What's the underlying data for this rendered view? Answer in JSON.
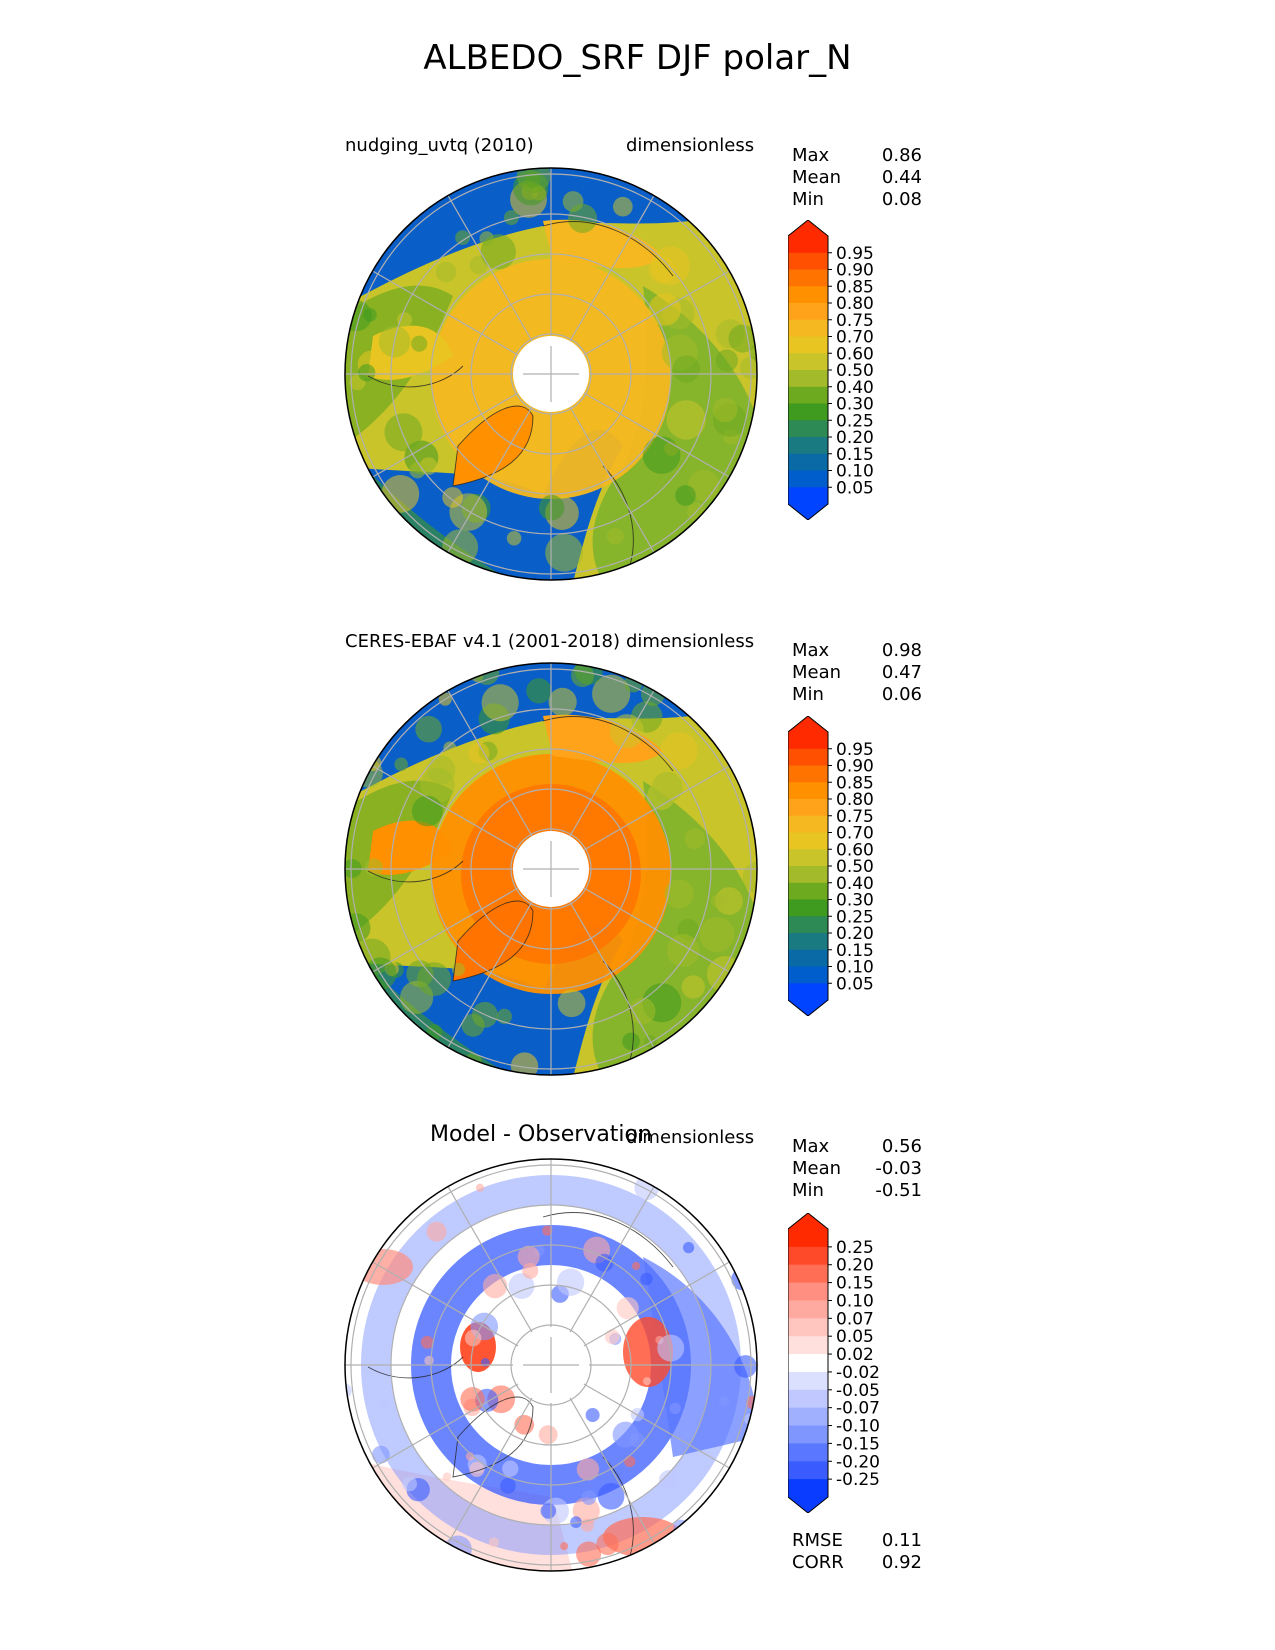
{
  "title": "ALBEDO_SRF DJF polar_N",
  "panels": [
    {
      "name": "nudging_uvtq (2010)",
      "units": "dimensionless",
      "stats": [
        {
          "label": "Max",
          "value": "0.86"
        },
        {
          "label": "Mean",
          "value": "0.44"
        },
        {
          "label": "Min",
          "value": "0.08"
        }
      ],
      "colorbar": {
        "ticks": [
          "0.95",
          "0.90",
          "0.85",
          "0.80",
          "0.75",
          "0.70",
          "0.60",
          "0.50",
          "0.40",
          "0.30",
          "0.25",
          "0.20",
          "0.15",
          "0.10",
          "0.05"
        ],
        "colors": [
          "#ff2a00",
          "#ff4f00",
          "#ff7300",
          "#ff9000",
          "#ffa41a",
          "#f5b820",
          "#e8c520",
          "#c9c42a",
          "#a3bb2a",
          "#6eaa20",
          "#3f9a20",
          "#2e8a54",
          "#197a82",
          "#0a6aa6",
          "#005ecc",
          "#0044ff"
        ]
      }
    },
    {
      "name": "CERES-EBAF v4.1 (2001-2018)",
      "units": "dimensionless",
      "stats": [
        {
          "label": "Max",
          "value": "0.98"
        },
        {
          "label": "Mean",
          "value": "0.47"
        },
        {
          "label": "Min",
          "value": "0.06"
        }
      ],
      "colorbar": {
        "ticks": [
          "0.95",
          "0.90",
          "0.85",
          "0.80",
          "0.75",
          "0.70",
          "0.60",
          "0.50",
          "0.40",
          "0.30",
          "0.25",
          "0.20",
          "0.15",
          "0.10",
          "0.05"
        ],
        "colors": [
          "#ff2a00",
          "#ff4f00",
          "#ff7300",
          "#ff9000",
          "#ffa41a",
          "#f5b820",
          "#e8c520",
          "#c9c42a",
          "#a3bb2a",
          "#6eaa20",
          "#3f9a20",
          "#2e8a54",
          "#197a82",
          "#0a6aa6",
          "#005ecc",
          "#0044ff"
        ]
      }
    },
    {
      "name": "Model - Observation",
      "units": "dimensionless",
      "stats": [
        {
          "label": "Max",
          "value": "0.56"
        },
        {
          "label": "Mean",
          "value": "-0.03"
        },
        {
          "label": "Min",
          "value": "-0.51"
        }
      ],
      "extra_stats": [
        {
          "label": "RMSE",
          "value": "0.11"
        },
        {
          "label": "CORR",
          "value": "0.92"
        }
      ],
      "colorbar": {
        "ticks": [
          "0.25",
          "0.20",
          "0.15",
          "0.10",
          "0.07",
          "0.05",
          "0.02",
          "-0.02",
          "-0.05",
          "-0.07",
          "-0.10",
          "-0.15",
          "-0.20",
          "-0.25"
        ],
        "colors": [
          "#ff2a00",
          "#ff4a2a",
          "#ff6e55",
          "#ff8f80",
          "#ffaaa0",
          "#ffc6c0",
          "#ffe0dc",
          "#ffffff",
          "#dce0ff",
          "#c0c8ff",
          "#a0b0ff",
          "#8096ff",
          "#5a78ff",
          "#3a5cff",
          "#0a3cff"
        ]
      }
    }
  ],
  "chart_data": [
    {
      "type": "heatmap",
      "title": "nudging_uvtq (2010)",
      "units": "dimensionless",
      "projection": "north polar stereographic",
      "levels": [
        0.05,
        0.1,
        0.15,
        0.2,
        0.25,
        0.3,
        0.4,
        0.5,
        0.6,
        0.7,
        0.75,
        0.8,
        0.85,
        0.9,
        0.95
      ],
      "max": 0.86,
      "mean": 0.44,
      "min": 0.08
    },
    {
      "type": "heatmap",
      "title": "CERES-EBAF v4.1 (2001-2018)",
      "units": "dimensionless",
      "projection": "north polar stereographic",
      "levels": [
        0.05,
        0.1,
        0.15,
        0.2,
        0.25,
        0.3,
        0.4,
        0.5,
        0.6,
        0.7,
        0.75,
        0.8,
        0.85,
        0.9,
        0.95
      ],
      "max": 0.98,
      "mean": 0.47,
      "min": 0.06
    },
    {
      "type": "heatmap",
      "title": "Model - Observation",
      "units": "dimensionless",
      "projection": "north polar stereographic",
      "levels": [
        -0.25,
        -0.2,
        -0.15,
        -0.1,
        -0.07,
        -0.05,
        -0.02,
        0.02,
        0.05,
        0.07,
        0.1,
        0.15,
        0.2,
        0.25
      ],
      "max": 0.56,
      "mean": -0.03,
      "min": -0.51,
      "rmse": 0.11,
      "corr": 0.92
    }
  ]
}
